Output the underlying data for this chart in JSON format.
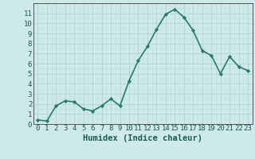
{
  "x": [
    0,
    1,
    2,
    3,
    4,
    5,
    6,
    7,
    8,
    9,
    10,
    11,
    12,
    13,
    14,
    15,
    16,
    17,
    18,
    19,
    20,
    21,
    22,
    23
  ],
  "y": [
    0.4,
    0.3,
    1.8,
    2.3,
    2.2,
    1.5,
    1.3,
    1.8,
    2.5,
    1.8,
    4.3,
    6.3,
    7.7,
    9.4,
    10.9,
    11.4,
    10.6,
    9.3,
    7.3,
    6.8,
    5.0,
    6.7,
    5.7,
    5.3
  ],
  "line_color": "#2a7a6f",
  "marker": "D",
  "marker_size": 2.2,
  "bg_color": "#ceeae8",
  "grid_major_color": "#aacfcc",
  "grid_minor_color": "#bfdfdc",
  "xlabel": "Humidex (Indice chaleur)",
  "xlim": [
    -0.5,
    23.5
  ],
  "ylim": [
    0,
    12
  ],
  "yticks": [
    0,
    1,
    2,
    3,
    4,
    5,
    6,
    7,
    8,
    9,
    10,
    11
  ],
  "xticks": [
    0,
    1,
    2,
    3,
    4,
    5,
    6,
    7,
    8,
    9,
    10,
    11,
    12,
    13,
    14,
    15,
    16,
    17,
    18,
    19,
    20,
    21,
    22,
    23
  ],
  "xlabel_fontsize": 7.5,
  "tick_fontsize": 6.5,
  "line_width": 1.2,
  "spine_color": "#555555"
}
